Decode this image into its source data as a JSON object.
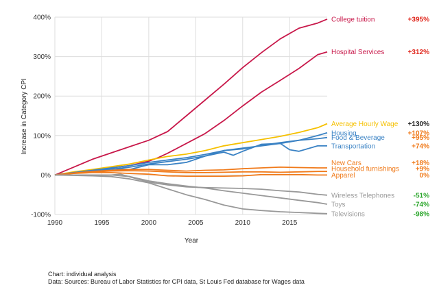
{
  "chart_data": {
    "type": "line",
    "xlabel": "Year",
    "ylabel": "Increase in Category CPI",
    "xlim": [
      1990,
      2019
    ],
    "ylim": [
      -100,
      400
    ],
    "x_ticks": [
      1990,
      1995,
      2000,
      2005,
      2010,
      2015
    ],
    "y_ticks": [
      -100,
      0,
      100,
      200,
      300,
      400
    ],
    "y_tick_labels": [
      "-100%",
      "0%",
      "100%",
      "200%",
      "300%",
      "400%"
    ],
    "grid": true,
    "legend": "labels at right end of lines",
    "series": [
      {
        "name": "College tuition",
        "change": "+395%",
        "color": "#c8184a",
        "change_color": "#e0281e",
        "label_y": 395,
        "x": [
          1990,
          1992,
          1994,
          1996,
          1998,
          2000,
          2002,
          2004,
          2006,
          2008,
          2010,
          2012,
          2014,
          2016,
          2018,
          2019
        ],
        "y": [
          0,
          20,
          40,
          56,
          72,
          88,
          110,
          150,
          190,
          230,
          272,
          310,
          345,
          372,
          385,
          395
        ]
      },
      {
        "name": "Hospital Services",
        "change": "+312%",
        "color": "#c8184a",
        "change_color": "#e0281e",
        "label_y": 312,
        "x": [
          1990,
          1992,
          1994,
          1996,
          1998,
          2000,
          2001,
          2002,
          2004,
          2006,
          2008,
          2010,
          2012,
          2014,
          2016,
          2018,
          2019
        ],
        "y": [
          0,
          7,
          12,
          18,
          24,
          35,
          44,
          55,
          80,
          105,
          138,
          175,
          210,
          240,
          270,
          305,
          312
        ]
      },
      {
        "name": "Average Hourly Wage",
        "change": "+130%",
        "color": "#f5c000",
        "change_color": "#222222",
        "label_y": 130,
        "x": [
          1990,
          1992,
          1994,
          1996,
          1998,
          2000,
          2002,
          2004,
          2006,
          2008,
          2010,
          2012,
          2014,
          2016,
          2018,
          2019
        ],
        "y": [
          0,
          8,
          14,
          21,
          28,
          38,
          47,
          53,
          62,
          74,
          82,
          90,
          98,
          108,
          120,
          130
        ]
      },
      {
        "name": "Housing",
        "change": "+107%",
        "color": "#3a82c4",
        "change_color": "#f07a1a",
        "label_y": 107,
        "x": [
          1990,
          1992,
          1994,
          1996,
          1998,
          2000,
          2002,
          2004,
          2006,
          2008,
          2010,
          2012,
          2014,
          2016,
          2018,
          2019
        ],
        "y": [
          0,
          6,
          12,
          18,
          24,
          32,
          38,
          44,
          52,
          62,
          68,
          74,
          80,
          88,
          100,
          107
        ]
      },
      {
        "name": "Food & Beverage",
        "change": "+95%",
        "color": "#3a82c4",
        "change_color": "#f07a1a",
        "label_y": 95,
        "x": [
          1990,
          1992,
          1994,
          1996,
          1998,
          2000,
          2002,
          2004,
          2006,
          2008,
          2010,
          2012,
          2014,
          2016,
          2018,
          2019
        ],
        "y": [
          0,
          6,
          10,
          15,
          20,
          28,
          34,
          40,
          48,
          62,
          66,
          75,
          82,
          88,
          92,
          95
        ]
      },
      {
        "name": "Transportation",
        "change": "+74%",
        "color": "#3a82c4",
        "change_color": "#f07a1a",
        "label_y": 74,
        "x": [
          1990,
          1992,
          1994,
          1996,
          1998,
          2000,
          2002,
          2004,
          2006,
          2008,
          2009,
          2010,
          2012,
          2014,
          2015,
          2016,
          2018,
          2019
        ],
        "y": [
          0,
          5,
          10,
          16,
          14,
          26,
          26,
          32,
          48,
          58,
          50,
          60,
          78,
          80,
          64,
          60,
          74,
          74
        ]
      },
      {
        "name": "New Cars",
        "change": "+18%",
        "color": "#f07a1a",
        "change_color": "#f07a1a",
        "label_y": 31,
        "x": [
          1990,
          1992,
          1994,
          1996,
          1998,
          2000,
          2002,
          2004,
          2006,
          2008,
          2010,
          2012,
          2014,
          2016,
          2018,
          2019
        ],
        "y": [
          0,
          5,
          9,
          12,
          14,
          14,
          12,
          10,
          12,
          13,
          16,
          18,
          20,
          19,
          18,
          18
        ]
      },
      {
        "name": "Household furnishings",
        "change": "+9%",
        "color": "#f07a1a",
        "change_color": "#f07a1a",
        "label_y": 16,
        "x": [
          1990,
          1992,
          1994,
          1996,
          1998,
          2000,
          2002,
          2004,
          2006,
          2008,
          2010,
          2012,
          2014,
          2016,
          2018,
          2019
        ],
        "y": [
          0,
          5,
          8,
          10,
          11,
          10,
          8,
          6,
          6,
          7,
          8,
          8,
          7,
          8,
          9,
          9
        ]
      },
      {
        "name": "Apparel",
        "change": "0%",
        "color": "#f07a1a",
        "change_color": "#f07a1a",
        "label_y": 0,
        "x": [
          1990,
          1992,
          1994,
          1996,
          1998,
          2000,
          2002,
          2004,
          2006,
          2008,
          2010,
          2012,
          2014,
          2016,
          2018,
          2019
        ],
        "y": [
          0,
          4,
          6,
          6,
          4,
          2,
          -2,
          -3,
          -3,
          -3,
          -2,
          1,
          1,
          1,
          0,
          0
        ]
      },
      {
        "name": "Wireless Telephones",
        "change": "-51%",
        "color": "#999999",
        "change_color": "#2aa52a",
        "label_y": -51,
        "x": [
          1990,
          1994,
          1996,
          1997,
          1998,
          2000,
          2002,
          2004,
          2006,
          2008,
          2010,
          2012,
          2014,
          2016,
          2018,
          2019
        ],
        "y": [
          0,
          0,
          0,
          2,
          -5,
          -18,
          -25,
          -30,
          -32,
          -33,
          -34,
          -36,
          -40,
          -43,
          -49,
          -51
        ]
      },
      {
        "name": "Toys",
        "change": "-74%",
        "color": "#999999",
        "change_color": "#2aa52a",
        "label_y": -74,
        "x": [
          1990,
          1994,
          1996,
          1998,
          2000,
          2002,
          2004,
          2006,
          2008,
          2010,
          2012,
          2014,
          2016,
          2018,
          2019
        ],
        "y": [
          0,
          0,
          0,
          -4,
          -15,
          -22,
          -28,
          -33,
          -40,
          -46,
          -52,
          -58,
          -64,
          -70,
          -74
        ]
      },
      {
        "name": "Televisions",
        "change": "-98%",
        "color": "#999999",
        "change_color": "#2aa52a",
        "label_y": -98,
        "x": [
          1990,
          1994,
          1996,
          1998,
          2000,
          2002,
          2004,
          2006,
          2008,
          2010,
          2012,
          2014,
          2016,
          2018,
          2019
        ],
        "y": [
          0,
          -2,
          -4,
          -10,
          -20,
          -35,
          -50,
          -62,
          -76,
          -86,
          -90,
          -93,
          -95,
          -97,
          -98
        ]
      }
    ]
  },
  "footer": {
    "line1": "Chart: individual analysis",
    "line2": "Data: Sources: Bureau of Labor Statistics for CPI data, St Louis Fed database for Wages data"
  }
}
